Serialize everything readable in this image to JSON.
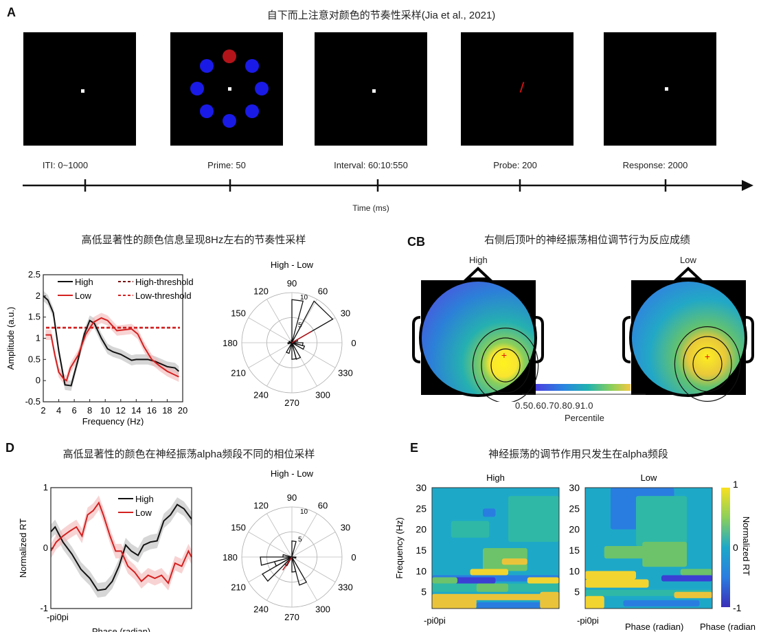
{
  "panel_a": {
    "letter": "A",
    "title": "自下而上注意对颜色的节奏性采样(Jia et al., 2021)",
    "stages": [
      "ITI: 0~1000",
      "Prime: 50",
      "Interval: 60:10:550",
      "Probe: 200",
      "Response: 2000"
    ],
    "time_label": "Time (ms)",
    "colors": {
      "target": "#b3141a",
      "distractor": "#1a1ae6",
      "fixation": "#ffffff",
      "probe": "#cc1111"
    }
  },
  "panel_b": {
    "title": "高低显著性的颜色信息呈现8Hz左右的节奏性采样"
  },
  "panel_c": {
    "letter": "CB",
    "title": "右侧后顶叶的神经振荡相位调节行为反应成绩",
    "high_label": "High",
    "low_label": "Low",
    "colorbar_ticks": "0.50.60.70.80.91.0",
    "colorbar_label": "Percentile"
  },
  "panel_d": {
    "letter": "D",
    "title": "高低显著性的颜色在神经振荡alpha频段不同的相位采样"
  },
  "panel_e": {
    "letter": "E",
    "title": "神经振荡的调节作用只发生在alpha频段"
  },
  "chart_data": [
    {
      "id": "b_spectrum",
      "type": "line",
      "xlabel": "Frequency (Hz)",
      "ylabel": "Amplitude (a.u.)",
      "xlim": [
        2,
        20
      ],
      "ylim": [
        -0.5,
        2.5
      ],
      "xticks": [
        "2",
        "4",
        "6",
        "8",
        "10",
        "12",
        "14",
        "16",
        "18",
        "20"
      ],
      "yticks": [
        "-0.5",
        "0",
        "0.5",
        "1",
        "1.5",
        "2",
        "2.5"
      ],
      "legend": [
        "High",
        "High-threshold",
        "Low",
        "Low-threshold"
      ],
      "legend_placement": "top-right",
      "series": [
        {
          "name": "High",
          "color": "#111111",
          "x": [
            2,
            2.6,
            3.3,
            4,
            4.8,
            5.6,
            6.5,
            7.3,
            8,
            8.6,
            9.5,
            10.3,
            11,
            12,
            13.4,
            14,
            15.5,
            16.5,
            18,
            19,
            19.5
          ],
          "y": [
            2.0,
            1.9,
            1.6,
            0.7,
            -0.1,
            -0.12,
            0.5,
            1.1,
            1.42,
            1.35,
            1.0,
            0.75,
            0.68,
            0.62,
            0.48,
            0.5,
            0.5,
            0.45,
            0.33,
            0.3,
            0.22
          ]
        },
        {
          "name": "Low",
          "color": "#d42020",
          "x": [
            2.3,
            3,
            3.5,
            4,
            4.6,
            5,
            5.5,
            6.5,
            7.5,
            8.5,
            9.5,
            10.3,
            11.5,
            12.5,
            13.4,
            14.2,
            15,
            16,
            17,
            18,
            19.5
          ],
          "y": [
            1.08,
            1.08,
            0.6,
            0.2,
            0.05,
            0,
            0.3,
            0.6,
            1.1,
            1.38,
            1.48,
            1.42,
            1.18,
            1.2,
            1.22,
            1.1,
            0.8,
            0.5,
            0.35,
            0.22,
            0.09
          ]
        },
        {
          "name": "High-threshold",
          "color": "#7a0a0a",
          "value": 1.25
        },
        {
          "name": "Low-threshold",
          "color": "#d42020",
          "value": 1.25
        }
      ]
    },
    {
      "id": "b_polar",
      "type": "polar-histogram",
      "title": "High - Low",
      "angle_ticks": [
        "0",
        "30",
        "60",
        "90",
        "120",
        "150",
        "180",
        "210",
        "240",
        "270",
        "300",
        "330"
      ],
      "radial_ticks": [
        "5",
        "10"
      ],
      "rlim": [
        0,
        10
      ],
      "bins": [
        [
          75,
          90,
          8.6
        ],
        [
          30,
          62,
          9.4
        ],
        [
          345,
          360,
          2.2
        ],
        [
          330,
          345,
          2.6
        ],
        [
          285,
          300,
          3.4
        ],
        [
          270,
          285,
          3.3
        ],
        [
          240,
          255,
          2.2
        ],
        [
          180,
          195,
          0.8
        ],
        [
          150,
          165,
          0.6
        ],
        [
          90,
          105,
          0.5
        ],
        [
          15,
          30,
          1.2
        ]
      ],
      "mean_angle": 30,
      "mean_length": 4.5,
      "mean_color": "#b3141a"
    },
    {
      "id": "d_phase",
      "type": "line",
      "xlabel": "Phase (radian)",
      "ylabel": "Normalized RT",
      "xtick_label": "-pi0pi",
      "xlim": [
        -3.1416,
        3.1416
      ],
      "ylim": [
        -1,
        1
      ],
      "yticks": [
        "-1",
        "0",
        "1"
      ],
      "legend": [
        "High",
        "Low"
      ],
      "legend_placement": "top-right",
      "series": [
        {
          "name": "High",
          "color": "#111111",
          "x": [
            -3.14,
            -2.95,
            -2.6,
            -2.2,
            -1.8,
            -1.4,
            -1.05,
            -0.7,
            -0.4,
            -0.1,
            0.2,
            0.45,
            0.75,
            1.0,
            1.3,
            1.6,
            1.9,
            2.2,
            2.5,
            2.8,
            3.14
          ],
          "y": [
            0.27,
            0.35,
            0.1,
            -0.1,
            -0.35,
            -0.5,
            -0.7,
            -0.68,
            -0.55,
            -0.3,
            0.05,
            -0.05,
            -0.12,
            0.05,
            0.1,
            0.12,
            0.45,
            0.55,
            0.72,
            0.65,
            0.48
          ]
        },
        {
          "name": "Low",
          "color": "#d42020",
          "x": [
            -3.14,
            -2.9,
            -2.6,
            -2.3,
            -2.0,
            -1.75,
            -1.5,
            -1.25,
            -1.0,
            -0.8,
            -0.5,
            -0.25,
            0.0,
            0.3,
            0.6,
            0.9,
            1.2,
            1.5,
            1.8,
            2.1,
            2.4,
            2.7,
            3.0,
            3.14
          ],
          "y": [
            -0.05,
            0.1,
            0.2,
            0.28,
            0.35,
            0.2,
            0.55,
            0.62,
            0.75,
            0.55,
            0.2,
            -0.05,
            -0.05,
            -0.3,
            -0.4,
            -0.55,
            -0.45,
            -0.5,
            -0.45,
            -0.58,
            -0.25,
            -0.3,
            -0.05,
            -0.15
          ]
        }
      ]
    },
    {
      "id": "d_polar",
      "type": "polar-histogram",
      "title": "High - Low",
      "angle_ticks": [
        "0",
        "30",
        "60",
        "90",
        "120",
        "150",
        "180",
        "210",
        "240",
        "270",
        "300",
        "330"
      ],
      "radial_ticks": [
        "5",
        "10"
      ],
      "rlim": [
        0,
        10
      ],
      "bins": [
        [
          180,
          195,
          6.3
        ],
        [
          165,
          180,
          1.8
        ],
        [
          195,
          210,
          3.6
        ],
        [
          210,
          225,
          6.8
        ],
        [
          225,
          240,
          2.0
        ],
        [
          270,
          285,
          3.0
        ],
        [
          285,
          300,
          5.8
        ],
        [
          75,
          90,
          3.2
        ],
        [
          345,
          360,
          0.8
        ]
      ],
      "mean_angle": 235,
      "mean_length": 3.2,
      "mean_color": "#b3141a"
    },
    {
      "id": "e_heatmaps",
      "type": "heatmap",
      "panels": [
        "High",
        "Low"
      ],
      "ylabel": "Frequency (Hz)",
      "xlabel": "Phase (radian)",
      "xlabel_repeat": "Phase (radian",
      "xtick_label_high": "-pi0pi",
      "xtick_label_low": "-pi0pi",
      "yticks": [
        "5",
        "10",
        "15",
        "20",
        "25",
        "30"
      ],
      "ylim": [
        1,
        30
      ],
      "colorbar_label": "Normalized RT",
      "colorbar_ticks": [
        "-1",
        "0",
        "1"
      ],
      "clim": [
        -1,
        1
      ],
      "colormap": "parula"
    }
  ]
}
